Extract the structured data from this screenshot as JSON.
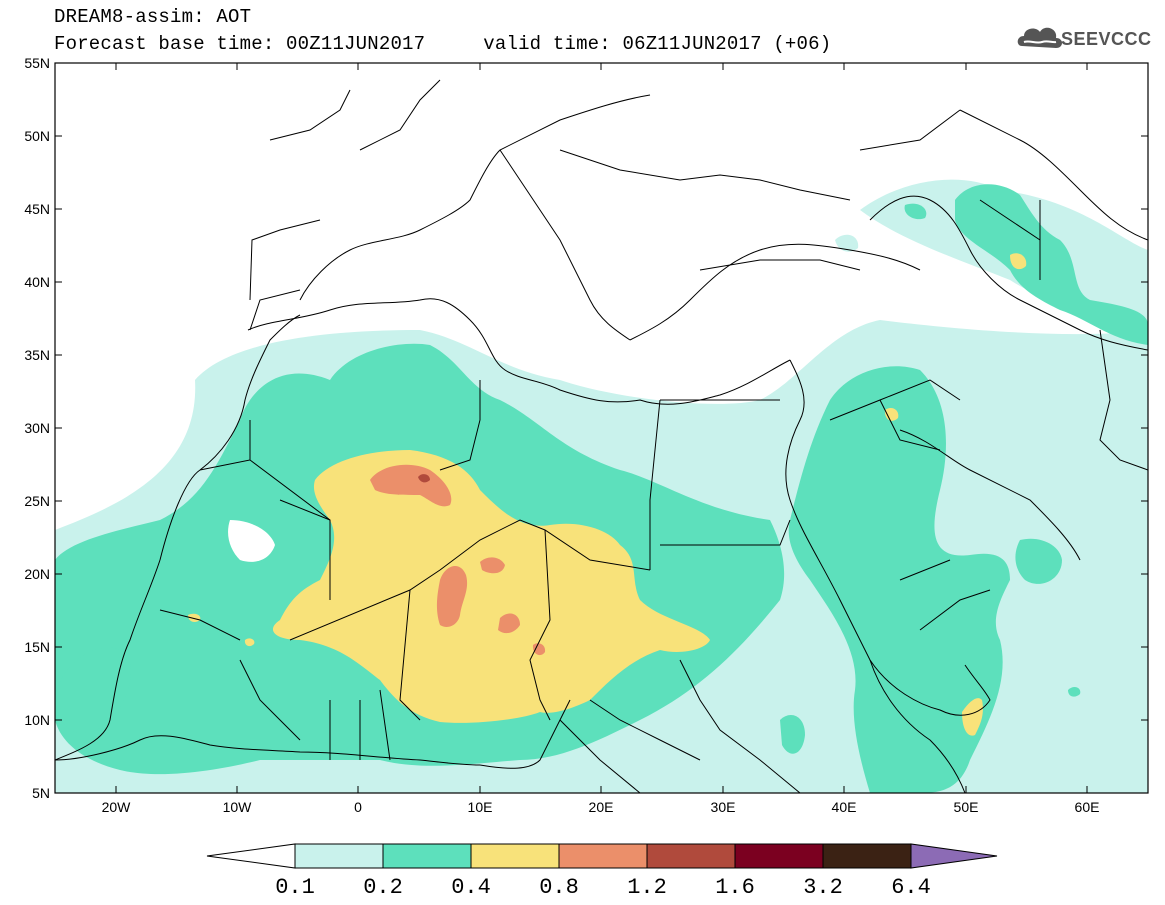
{
  "header": {
    "title_line1": "DREAM8-assim: AOT",
    "title_line2": "Forecast base time: 00Z11JUN2017     valid time: 06Z11JUN2017 (+06)",
    "logo_text": "SEEVCCC"
  },
  "map": {
    "variable": "AOT",
    "lon_range": [
      -25,
      65
    ],
    "lat_range": [
      5,
      55
    ],
    "lat_labels": [
      "55N",
      "50N",
      "45N",
      "40N",
      "35N",
      "30N",
      "25N",
      "20N",
      "15N",
      "10N",
      "5N"
    ],
    "lon_labels": [
      "20W",
      "10W",
      "0",
      "10E",
      "20E",
      "30E",
      "40E",
      "50E",
      "60E"
    ]
  },
  "colorbar": {
    "colors": [
      "#ffffff",
      "#c9f2ec",
      "#5de0bc",
      "#f8e27a",
      "#eb8f6a",
      "#b04a3c",
      "#7b0020",
      "#3b2214",
      "#8c6bb5"
    ],
    "labels": [
      "0.1",
      "0.2",
      "0.4",
      "0.8",
      "1.2",
      "1.6",
      "3.2",
      "6.4"
    ]
  }
}
